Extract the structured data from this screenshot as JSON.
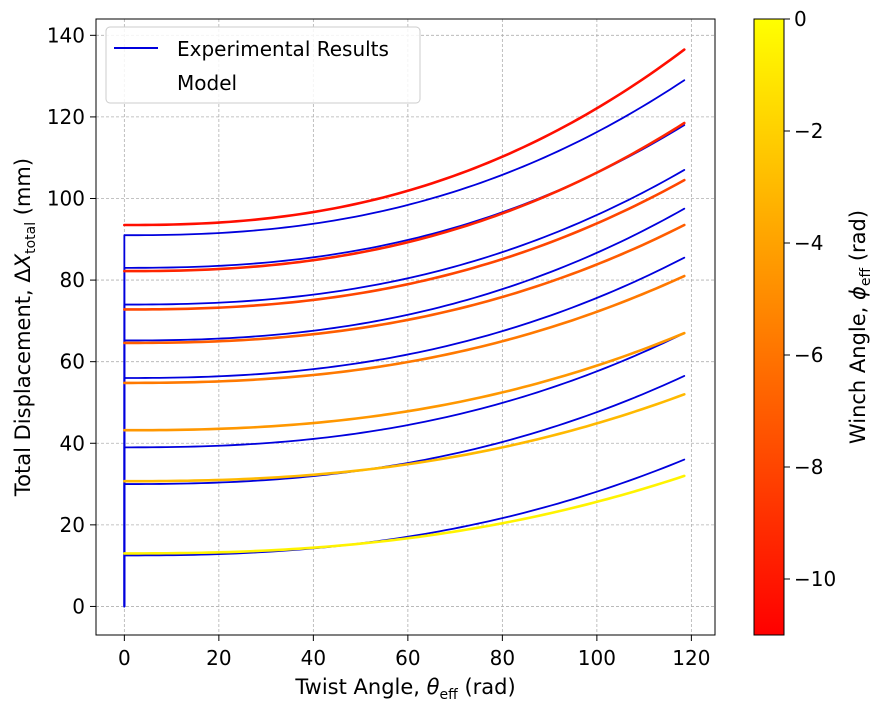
{
  "chart_data": {
    "type": "line",
    "xlabel": "Twist Angle, θ_eff (rad)",
    "xlabel_parts": {
      "pre": "Twist Angle, ",
      "sym": "θ",
      "sub": "eff",
      "post": " (rad)"
    },
    "ylabel": "Total Displacement, ΔX_total (mm)",
    "ylabel_parts": {
      "pre": "Total Displacement, Δ",
      "sym": "X",
      "sub": "total",
      "post": " (mm)"
    },
    "xlim": [
      -6,
      125
    ],
    "ylim": [
      -7,
      144
    ],
    "xticks": [
      0,
      20,
      40,
      60,
      80,
      100,
      120
    ],
    "yticks": [
      0,
      20,
      40,
      60,
      80,
      100,
      120,
      140
    ],
    "grid": true,
    "legend": {
      "position": "upper-left",
      "entries": [
        "Experimental Results",
        "Model"
      ]
    },
    "colorbar": {
      "label": "Winch Angle, ϕ_eff (rad)",
      "label_parts": {
        "pre": "Winch Angle, ",
        "sym": "ϕ",
        "sub": "eff",
        "post": " (rad)"
      },
      "range": [
        -11,
        0
      ],
      "ticks": [
        0,
        -2,
        -4,
        -6,
        -8,
        -10
      ],
      "tick_labels": [
        "0",
        "−2",
        "−4",
        "−6",
        "−8",
        "−10"
      ],
      "colormap": "autumn"
    },
    "x_max": 118.5,
    "experimental_color": "#0000dd",
    "series": [
      {
        "name": "Experimental Results",
        "start": 12.5,
        "end": 36
      },
      {
        "name": "Experimental Results",
        "start": 30,
        "end": 56.5
      },
      {
        "name": "Experimental Results",
        "start": 39,
        "end": 67
      },
      {
        "name": "Experimental Results",
        "start": 56,
        "end": 85.5
      },
      {
        "name": "Experimental Results",
        "start": 65.2,
        "end": 97.5
      },
      {
        "name": "Experimental Results",
        "start": 74,
        "end": 107
      },
      {
        "name": "Experimental Results",
        "start": 83,
        "end": 118
      },
      {
        "name": "Experimental Results",
        "start": 91,
        "end": 129
      },
      {
        "name": "Model",
        "start": 13,
        "end": 32,
        "phi": -0.5
      },
      {
        "name": "Model",
        "start": 30.7,
        "end": 52,
        "phi": -3
      },
      {
        "name": "Model",
        "start": 43.2,
        "end": 67,
        "phi": -4.5
      },
      {
        "name": "Model",
        "start": 54.8,
        "end": 81,
        "phi": -5.8
      },
      {
        "name": "Model",
        "start": 64.6,
        "end": 93.5,
        "phi": -7
      },
      {
        "name": "Model",
        "start": 72.8,
        "end": 104.5,
        "phi": -8
      },
      {
        "name": "Model",
        "start": 82.2,
        "end": 118.5,
        "phi": -9.4
      },
      {
        "name": "Model",
        "start": 93.5,
        "end": 136.5,
        "phi": -10.4
      }
    ]
  }
}
